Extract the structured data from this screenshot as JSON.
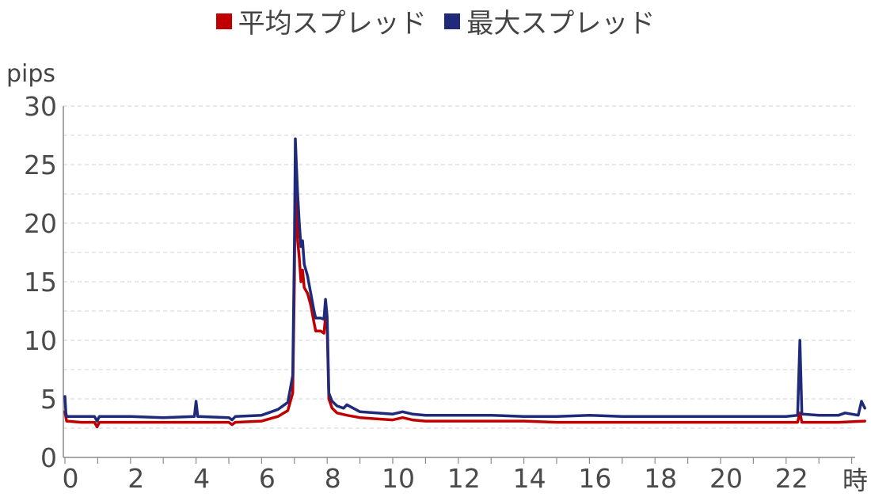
{
  "chart_data": {
    "type": "line",
    "legend_position": "top",
    "ylabel": "pips",
    "xlabel": "時",
    "ylim": [
      0,
      30
    ],
    "xlim": [
      0,
      24.4
    ],
    "yticks": [
      "0",
      "5",
      "10",
      "15",
      "20",
      "25",
      "30"
    ],
    "xticks": [
      "0",
      "2",
      "4",
      "6",
      "8",
      "10",
      "12",
      "14",
      "16",
      "18",
      "20",
      "22"
    ],
    "grid": "horizontal dashed",
    "series": [
      {
        "name": "平均スプレッド",
        "color": "#c00000",
        "points": [
          [
            0,
            3.9
          ],
          [
            0.05,
            3.1
          ],
          [
            0.5,
            3.0
          ],
          [
            0.9,
            3.0
          ],
          [
            0.98,
            2.6
          ],
          [
            1.05,
            3.0
          ],
          [
            2,
            3.0
          ],
          [
            3,
            3.0
          ],
          [
            4,
            3.0
          ],
          [
            5,
            3.0
          ],
          [
            5.1,
            2.8
          ],
          [
            5.2,
            3.0
          ],
          [
            6,
            3.1
          ],
          [
            6.5,
            3.5
          ],
          [
            6.8,
            4.0
          ],
          [
            6.95,
            5.5
          ],
          [
            7.0,
            15.0
          ],
          [
            7.03,
            25.0
          ],
          [
            7.06,
            22.0
          ],
          [
            7.1,
            18.5
          ],
          [
            7.15,
            17.0
          ],
          [
            7.2,
            15.0
          ],
          [
            7.25,
            16.0
          ],
          [
            7.3,
            14.5
          ],
          [
            7.4,
            14.0
          ],
          [
            7.5,
            13.0
          ],
          [
            7.6,
            11.5
          ],
          [
            7.65,
            10.8
          ],
          [
            7.8,
            10.8
          ],
          [
            7.9,
            10.6
          ],
          [
            7.95,
            12.0
          ],
          [
            8.0,
            11.0
          ],
          [
            8.05,
            5.0
          ],
          [
            8.15,
            4.2
          ],
          [
            8.3,
            3.8
          ],
          [
            8.6,
            3.6
          ],
          [
            9.0,
            3.4
          ],
          [
            9.5,
            3.3
          ],
          [
            10,
            3.2
          ],
          [
            10.3,
            3.4
          ],
          [
            10.6,
            3.2
          ],
          [
            11,
            3.1
          ],
          [
            12,
            3.1
          ],
          [
            13,
            3.1
          ],
          [
            14,
            3.1
          ],
          [
            15,
            3.0
          ],
          [
            16,
            3.0
          ],
          [
            17,
            3.0
          ],
          [
            18,
            3.0
          ],
          [
            19,
            3.0
          ],
          [
            20,
            3.0
          ],
          [
            21,
            3.0
          ],
          [
            22,
            3.0
          ],
          [
            22.35,
            3.0
          ],
          [
            22.42,
            3.8
          ],
          [
            22.48,
            3.0
          ],
          [
            23,
            3.0
          ],
          [
            23.6,
            3.0
          ],
          [
            24.4,
            3.1
          ]
        ]
      },
      {
        "name": "最大スプレッド",
        "color": "#1f2a7a",
        "points": [
          [
            0,
            5.2
          ],
          [
            0.03,
            3.8
          ],
          [
            0.05,
            3.5
          ],
          [
            0.5,
            3.5
          ],
          [
            0.9,
            3.5
          ],
          [
            0.98,
            3.1
          ],
          [
            1.05,
            3.5
          ],
          [
            2,
            3.5
          ],
          [
            3,
            3.4
          ],
          [
            3.95,
            3.5
          ],
          [
            4.0,
            4.8
          ],
          [
            4.05,
            3.5
          ],
          [
            5,
            3.4
          ],
          [
            5.1,
            3.2
          ],
          [
            5.2,
            3.5
          ],
          [
            6,
            3.6
          ],
          [
            6.3,
            3.9
          ],
          [
            6.5,
            4.1
          ],
          [
            6.8,
            4.7
          ],
          [
            6.95,
            7.0
          ],
          [
            7.0,
            18.0
          ],
          [
            7.03,
            27.2
          ],
          [
            7.06,
            25.0
          ],
          [
            7.1,
            22.5
          ],
          [
            7.15,
            20.0
          ],
          [
            7.2,
            18.0
          ],
          [
            7.25,
            18.5
          ],
          [
            7.3,
            16.5
          ],
          [
            7.4,
            15.5
          ],
          [
            7.5,
            14.0
          ],
          [
            7.6,
            12.5
          ],
          [
            7.65,
            11.9
          ],
          [
            7.8,
            11.9
          ],
          [
            7.9,
            11.8
          ],
          [
            7.95,
            13.5
          ],
          [
            8.0,
            12.0
          ],
          [
            8.05,
            5.5
          ],
          [
            8.15,
            4.8
          ],
          [
            8.3,
            4.4
          ],
          [
            8.5,
            4.2
          ],
          [
            8.6,
            4.5
          ],
          [
            9.0,
            3.9
          ],
          [
            9.5,
            3.8
          ],
          [
            10,
            3.7
          ],
          [
            10.3,
            3.9
          ],
          [
            10.6,
            3.7
          ],
          [
            11,
            3.6
          ],
          [
            12,
            3.6
          ],
          [
            13,
            3.6
          ],
          [
            14,
            3.5
          ],
          [
            15,
            3.5
          ],
          [
            16,
            3.6
          ],
          [
            17,
            3.5
          ],
          [
            18,
            3.5
          ],
          [
            19,
            3.5
          ],
          [
            20,
            3.5
          ],
          [
            21,
            3.5
          ],
          [
            22,
            3.5
          ],
          [
            22.35,
            3.6
          ],
          [
            22.42,
            10.0
          ],
          [
            22.48,
            3.7
          ],
          [
            23,
            3.6
          ],
          [
            23.6,
            3.6
          ],
          [
            23.8,
            3.8
          ],
          [
            24.2,
            3.6
          ],
          [
            24.3,
            4.8
          ],
          [
            24.4,
            4.2
          ]
        ]
      }
    ]
  }
}
